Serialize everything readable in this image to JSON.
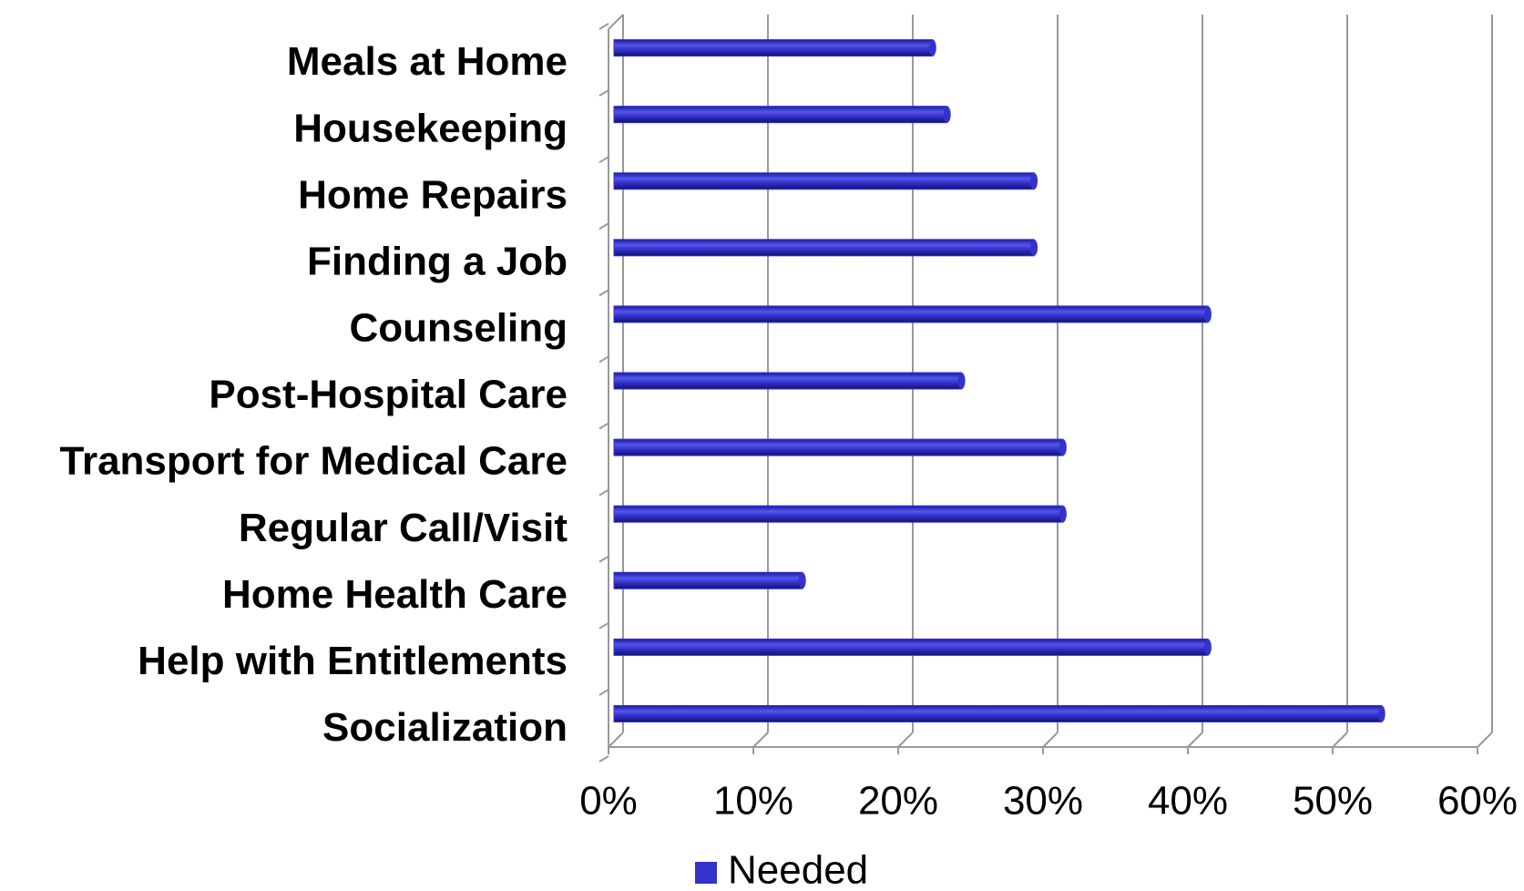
{
  "chart_data": {
    "type": "bar",
    "orientation": "horizontal",
    "categories": [
      "Meals at Home",
      "Housekeeping",
      "Home Repairs",
      "Finding a Job",
      "Counseling",
      "Post-Hospital Care",
      "Transport for Medical Care",
      "Regular Call/Visit",
      "Home Health Care",
      "Help with Entitlements",
      "Socialization"
    ],
    "series": [
      {
        "name": "Needed",
        "color": "#3333cc",
        "values": [
          22,
          23,
          29,
          29,
          41,
          24,
          31,
          31,
          13,
          41,
          53
        ]
      }
    ],
    "xlim": [
      0,
      60
    ],
    "xticks": [
      {
        "value": 0,
        "label": "0%"
      },
      {
        "value": 10,
        "label": "10%"
      },
      {
        "value": 20,
        "label": "20%"
      },
      {
        "value": 30,
        "label": "30%"
      },
      {
        "value": 40,
        "label": "40%"
      },
      {
        "value": 50,
        "label": "50%"
      },
      {
        "value": 60,
        "label": "60%"
      }
    ],
    "grid": true,
    "legend": "bottom"
  }
}
